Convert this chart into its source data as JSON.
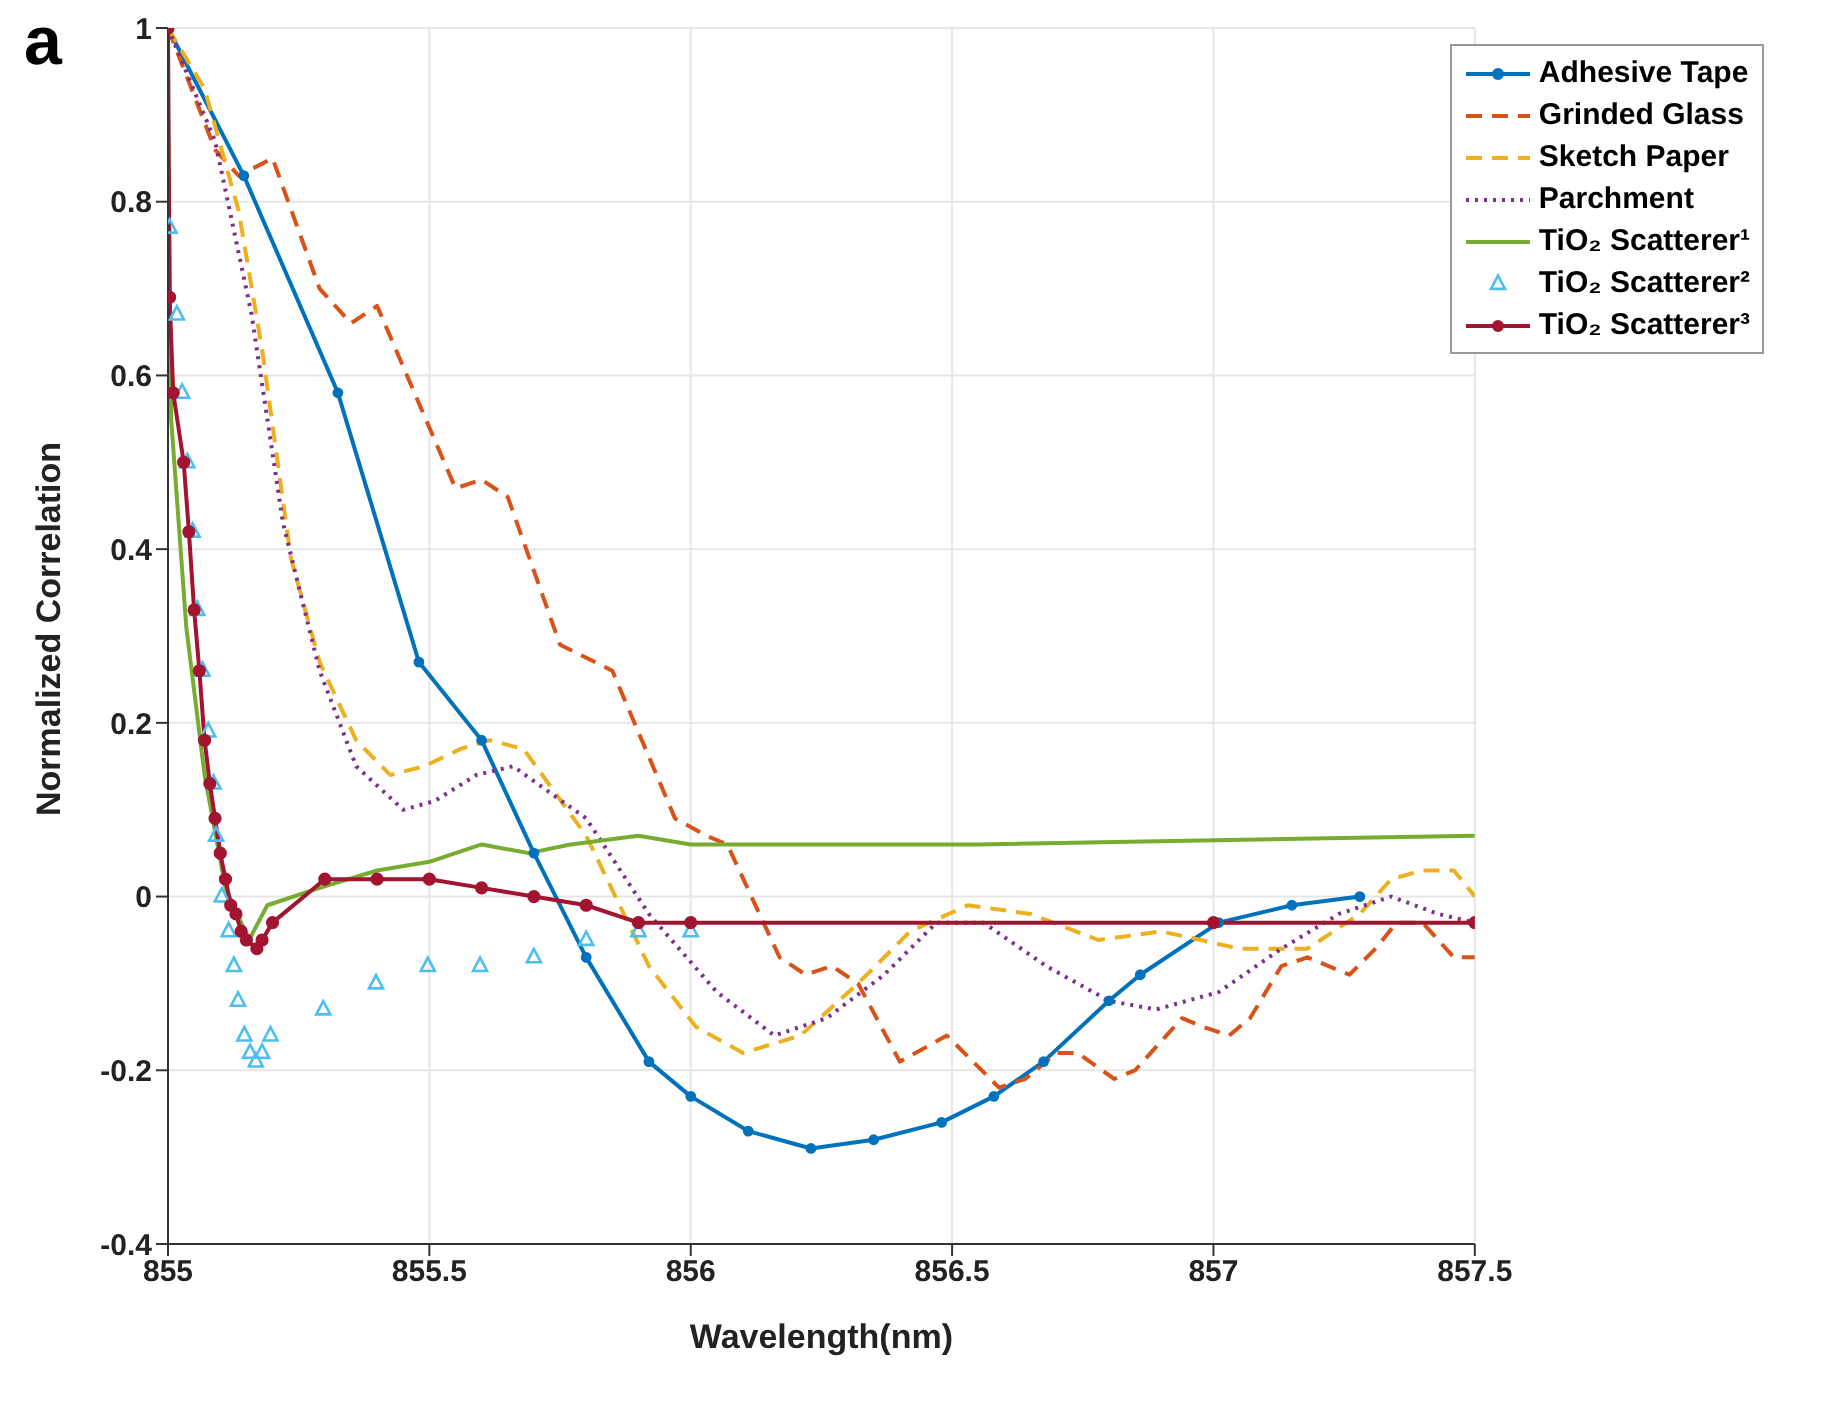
{
  "chart_data": {
    "type": "line",
    "xlabel": "Wavelength(nm)",
    "ylabel": "Normalized Correlation",
    "annotations": [
      "a"
    ],
    "xlim": [
      855,
      857.5
    ],
    "xticks": [
      855,
      855.5,
      856,
      856.5,
      857,
      857.5
    ],
    "ylim": [
      -0.4,
      1
    ],
    "yticks": [
      -0.4,
      -0.2,
      0,
      0.2,
      0.4,
      0.6,
      0.8,
      1
    ],
    "grid": true,
    "legend": "top right",
    "series": [
      {
        "name": "Adhesive Tape",
        "color": "#0072bd",
        "line_style": "solid",
        "marker": "circle",
        "x": [
          855,
          855.145,
          855.325,
          855.48,
          855.6,
          855.7,
          855.8,
          855.92,
          856.0,
          856.11,
          856.23,
          856.35,
          856.48,
          856.58,
          856.675,
          856.8,
          856.86,
          857.01,
          857.15,
          857.28
        ],
        "values": [
          1,
          0.83,
          0.58,
          0.27,
          0.18,
          0.05,
          -0.07,
          -0.19,
          -0.23,
          -0.27,
          -0.29,
          -0.28,
          -0.26,
          -0.23,
          -0.19,
          -0.12,
          -0.09,
          -0.03,
          -0.01,
          0
        ]
      },
      {
        "name": "Grinded Glass",
        "color": "#d95319",
        "line_style": "dashed",
        "marker": "none",
        "x": [
          855,
          855.09,
          855.135,
          855.2,
          855.29,
          855.35,
          855.4,
          855.55,
          855.6,
          855.65,
          855.75,
          855.85,
          855.97,
          856.03,
          856.07,
          856.17,
          856.22,
          856.27,
          856.32,
          856.4,
          856.49,
          856.59,
          856.64,
          856.7,
          856.74,
          856.81,
          856.85,
          856.94,
          856.98,
          857.03,
          857.07,
          857.13,
          857.18,
          857.26,
          857.31,
          857.35,
          857.4,
          857.46,
          857.5
        ],
        "values": [
          1,
          0.86,
          0.83,
          0.85,
          0.7,
          0.66,
          0.68,
          0.47,
          0.48,
          0.46,
          0.29,
          0.26,
          0.09,
          0.07,
          0.06,
          -0.07,
          -0.09,
          -0.08,
          -0.1,
          -0.19,
          -0.16,
          -0.22,
          -0.21,
          -0.18,
          -0.18,
          -0.21,
          -0.2,
          -0.14,
          -0.15,
          -0.16,
          -0.14,
          -0.08,
          -0.07,
          -0.09,
          -0.06,
          -0.03,
          -0.03,
          -0.07,
          -0.07
        ]
      },
      {
        "name": "Sketch Paper",
        "color": "#edb120",
        "line_style": "dashed",
        "marker": "none",
        "x": [
          855,
          855.07,
          855.135,
          855.18,
          855.235,
          855.29,
          855.36,
          855.425,
          855.49,
          855.56,
          855.615,
          855.68,
          855.8,
          855.92,
          856.01,
          856.1,
          856.21,
          856.32,
          856.42,
          856.53,
          856.65,
          856.78,
          856.9,
          857.05,
          857.18,
          857.28,
          857.34,
          857.4,
          857.46,
          857.5
        ],
        "values": [
          1,
          0.93,
          0.79,
          0.63,
          0.39,
          0.27,
          0.18,
          0.14,
          0.15,
          0.17,
          0.18,
          0.17,
          0.07,
          -0.08,
          -0.15,
          -0.18,
          -0.16,
          -0.1,
          -0.04,
          -0.01,
          -0.02,
          -0.05,
          -0.04,
          -0.06,
          -0.06,
          -0.02,
          0.02,
          0.03,
          0.03,
          0
        ]
      },
      {
        "name": "Parchment",
        "color": "#7e2f8e",
        "line_style": "dotted",
        "marker": "none",
        "x": [
          855,
          855.09,
          855.16,
          855.22,
          855.29,
          855.36,
          855.45,
          855.51,
          855.59,
          855.66,
          855.8,
          855.92,
          856.05,
          856.16,
          856.26,
          856.37,
          856.47,
          856.56,
          856.68,
          856.8,
          856.89,
          857.01,
          857.13,
          857.24,
          857.34,
          857.43,
          857.5
        ],
        "values": [
          1,
          0.87,
          0.67,
          0.43,
          0.26,
          0.15,
          0.1,
          0.11,
          0.14,
          0.15,
          0.09,
          -0.02,
          -0.11,
          -0.16,
          -0.14,
          -0.09,
          -0.03,
          -0.03,
          -0.08,
          -0.12,
          -0.13,
          -0.11,
          -0.06,
          -0.02,
          0,
          -0.02,
          -0.03
        ]
      },
      {
        "name": "TiO₂ Scatterer¹",
        "color": "#77ac30",
        "line_style": "solid",
        "marker": "none",
        "x": [
          855,
          855.006,
          855.035,
          855.07,
          855.11,
          855.155,
          855.19,
          855.29,
          855.4,
          855.5,
          855.6,
          855.69,
          855.77,
          855.9,
          856.0,
          856.55,
          857.5
        ],
        "values": [
          0.9,
          0.55,
          0.31,
          0.14,
          0.01,
          -0.05,
          -0.01,
          0.01,
          0.03,
          0.04,
          0.06,
          0.05,
          0.06,
          0.07,
          0.06,
          0.06,
          0.07
        ]
      },
      {
        "name": "TiO₂ Scatterer²",
        "type": "scatter",
        "color": "#4dbeee",
        "marker": "triangle",
        "x": [
          855.003,
          855.017,
          855.027,
          855.037,
          855.047,
          855.056,
          855.066,
          855.077,
          855.087,
          855.092,
          855.103,
          855.116,
          855.126,
          855.134,
          855.146,
          855.157,
          855.168,
          855.18,
          855.196,
          855.297,
          855.398,
          855.497,
          855.597,
          855.7,
          855.8,
          855.9,
          856.0
        ],
        "values": [
          0.77,
          0.67,
          0.58,
          0.5,
          0.42,
          0.33,
          0.26,
          0.19,
          0.13,
          0.07,
          0,
          -0.04,
          -0.08,
          -0.12,
          -0.16,
          -0.18,
          -0.19,
          -0.18,
          -0.16,
          -0.13,
          -0.1,
          -0.08,
          -0.08,
          -0.07,
          -0.05,
          -0.04,
          -0.04
        ]
      },
      {
        "name": "TiO₂ Scatterer³",
        "color": "#a2142f",
        "line_style": "solid",
        "marker": "circle",
        "x": [
          855,
          855.003,
          855.01,
          855.03,
          855.04,
          855.05,
          855.06,
          855.07,
          855.08,
          855.09,
          855.1,
          855.11,
          855.12,
          855.13,
          855.14,
          855.15,
          855.17,
          855.18,
          855.2,
          855.3,
          855.4,
          855.5,
          855.6,
          855.7,
          855.8,
          855.9,
          856.0,
          857.0,
          857.5
        ],
        "values": [
          1,
          0.69,
          0.58,
          0.5,
          0.42,
          0.33,
          0.26,
          0.18,
          0.13,
          0.09,
          0.05,
          0.02,
          -0.01,
          -0.02,
          -0.04,
          -0.05,
          -0.06,
          -0.05,
          -0.03,
          0.02,
          0.02,
          0.02,
          0.01,
          0,
          -0.01,
          -0.03,
          -0.03,
          -0.03,
          -0.03
        ]
      }
    ]
  }
}
